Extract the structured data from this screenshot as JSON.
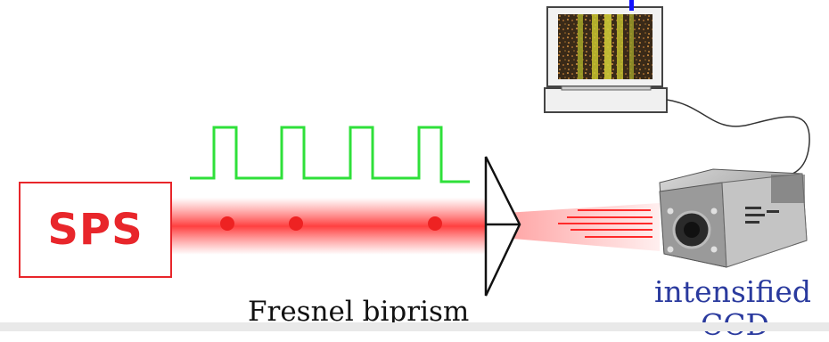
{
  "source": {
    "label": "SPS",
    "color": "#e8262b"
  },
  "biprism": {
    "label": "Fresnel biprism"
  },
  "detector": {
    "label_line1": "intensified",
    "label_line2": "CCD",
    "label_color": "#2a3a9e"
  },
  "pulse_train": {
    "color": "#2fe03a"
  },
  "beam": {
    "color": "#ff2a2a"
  }
}
